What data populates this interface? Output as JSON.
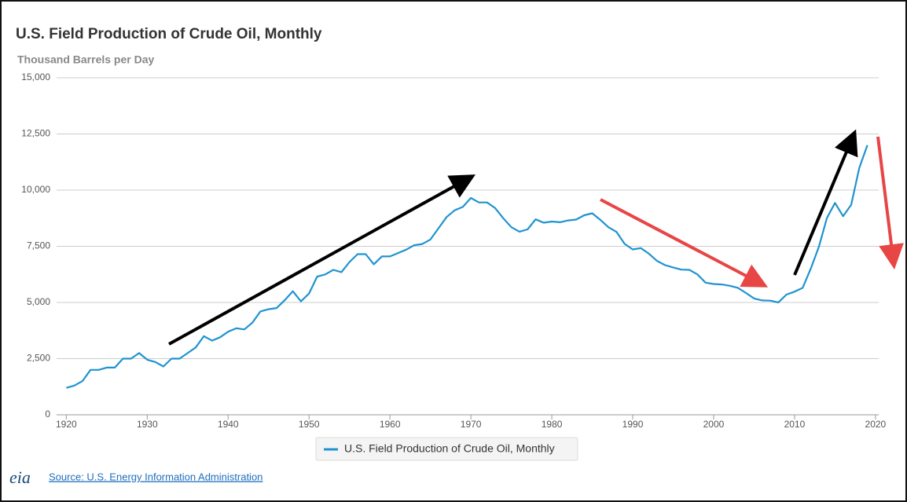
{
  "chart_data": {
    "type": "line",
    "title": "U.S. Field Production of Crude Oil, Monthly",
    "y_label": "Thousand Barrels per Day",
    "source": "Source: U.S. Energy Information Administration",
    "logo": "eia",
    "xlim": [
      1918.8,
      2020.4
    ],
    "xticks": [
      1920,
      1930,
      1940,
      1950,
      1960,
      1970,
      1980,
      1990,
      2000,
      2010,
      2020
    ],
    "ylim": [
      0,
      15000
    ],
    "yticks": [
      0,
      {
        "value": 2500,
        "label": "2,500"
      },
      {
        "value": 5000,
        "label": "5,000"
      },
      {
        "value": 7500,
        "label": "7,500"
      },
      {
        "value": 10000,
        "label": "10,000"
      },
      {
        "value": 12500,
        "label": "12,500"
      },
      {
        "value": 15000,
        "label": "15,000"
      }
    ],
    "grid": true,
    "x": [
      1920,
      1921,
      1922,
      1923,
      1924,
      1925,
      1926,
      1927,
      1928,
      1929,
      1930,
      1931,
      1932,
      1933,
      1934,
      1935,
      1936,
      1937,
      1938,
      1939,
      1940,
      1941,
      1942,
      1943,
      1944,
      1945,
      1946,
      1947,
      1948,
      1949,
      1950,
      1951,
      1952,
      1953,
      1954,
      1955,
      1956,
      1957,
      1958,
      1959,
      1960,
      1961,
      1962,
      1963,
      1964,
      1965,
      1966,
      1967,
      1968,
      1969,
      1970,
      1971,
      1972,
      1973,
      1974,
      1975,
      1976,
      1977,
      1978,
      1979,
      1980,
      1981,
      1982,
      1983,
      1984,
      1985,
      1986,
      1987,
      1988,
      1989,
      1990,
      1991,
      1992,
      1993,
      1994,
      1995,
      1996,
      1997,
      1998,
      1999,
      2000,
      2001,
      2002,
      2003,
      2004,
      2005,
      2006,
      2007,
      2008,
      2009,
      2010,
      2011,
      2012,
      2013,
      2014,
      2015,
      2016,
      2017,
      2018,
      2019
    ],
    "series": [
      {
        "name": "U.S. Field Production of Crude Oil, Monthly",
        "color": "#1f93d0",
        "values": [
          1200,
          1300,
          1500,
          2000,
          2000,
          2100,
          2100,
          2500,
          2500,
          2750,
          2450,
          2350,
          2150,
          2500,
          2500,
          2750,
          3000,
          3500,
          3300,
          3450,
          3700,
          3850,
          3800,
          4100,
          4600,
          4700,
          4750,
          5100,
          5500,
          5050,
          5400,
          6150,
          6250,
          6450,
          6350,
          6800,
          7150,
          7150,
          6700,
          7050,
          7050,
          7200,
          7350,
          7550,
          7600,
          7800,
          8300,
          8800,
          9100,
          9250,
          9650,
          9450,
          9450,
          9200,
          8750,
          8350,
          8150,
          8250,
          8700,
          8550,
          8600,
          8570,
          8650,
          8690,
          8880,
          8970,
          8680,
          8350,
          8140,
          7610,
          7360,
          7420,
          7170,
          6850,
          6660,
          6560,
          6460,
          6450,
          6250,
          5880,
          5820,
          5800,
          5740,
          5650,
          5420,
          5180,
          5090,
          5080,
          5000,
          5350,
          5480,
          5650,
          6500,
          7470,
          8760,
          9430,
          8840,
          9350,
          10990,
          12000
        ]
      }
    ]
  }
}
